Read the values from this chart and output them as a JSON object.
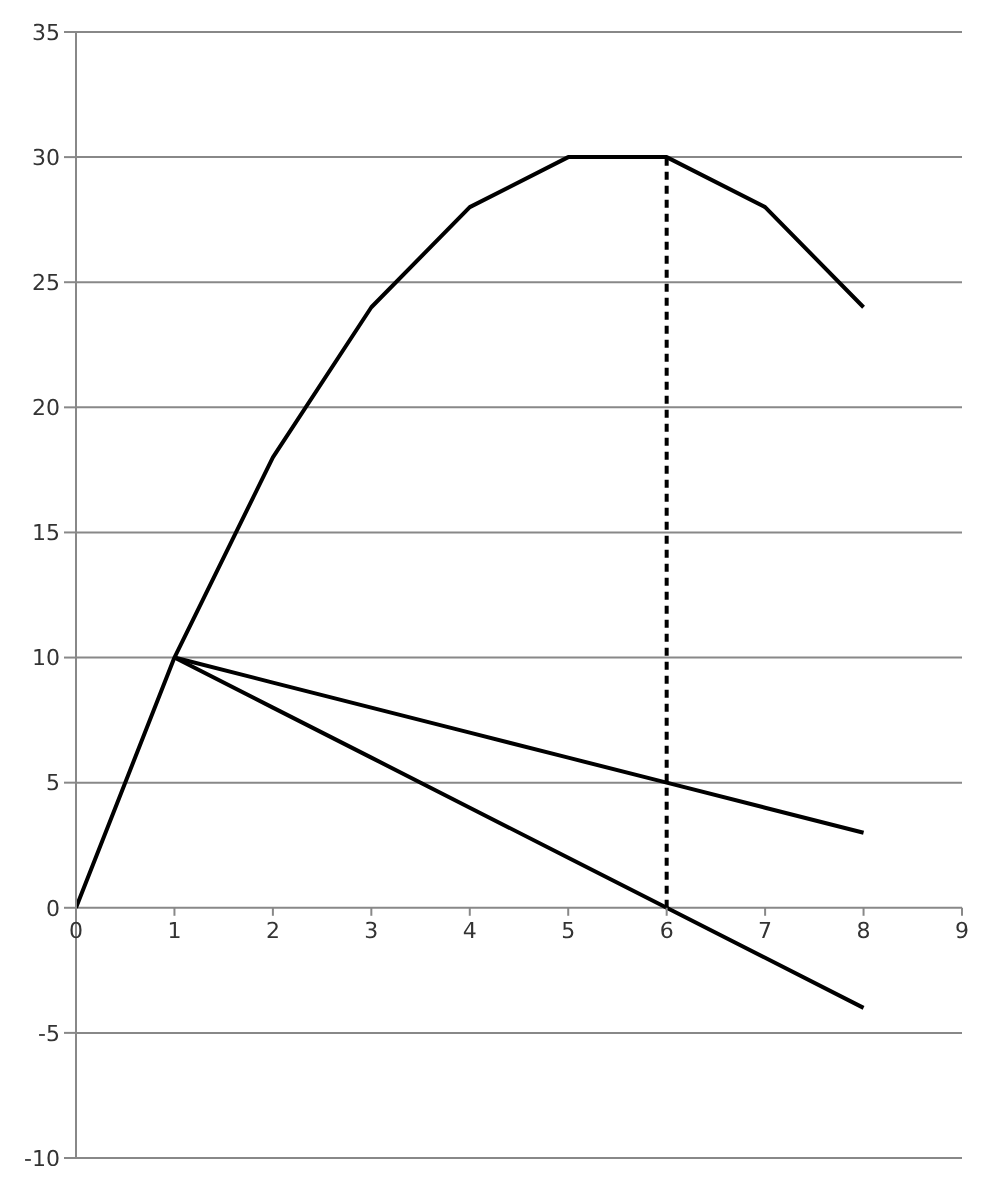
{
  "chart_data": {
    "type": "line",
    "xlim": [
      0,
      9
    ],
    "xticks": [
      0,
      1,
      2,
      3,
      4,
      5,
      6,
      7,
      8,
      9
    ],
    "ylim": [
      -10,
      35
    ],
    "yticks": [
      -10,
      -5,
      0,
      5,
      10,
      15,
      20,
      25,
      30,
      35
    ],
    "grid": "y",
    "legend": false,
    "marker": "none",
    "line_style": "solid",
    "series": [
      {
        "color": "#000000",
        "x": [
          0,
          1,
          2,
          3,
          4,
          5,
          6,
          7,
          8
        ],
        "values": [
          0,
          10,
          18,
          24,
          28,
          30,
          30,
          28,
          24
        ]
      },
      {
        "color": "#000000",
        "x": [
          1,
          2,
          3,
          4,
          5,
          6,
          7,
          8
        ],
        "values": [
          10,
          9,
          8,
          7,
          6,
          5,
          4,
          3
        ]
      },
      {
        "color": "#000000",
        "x": [
          1,
          2,
          3,
          4,
          5,
          6,
          7,
          8
        ],
        "values": [
          10,
          8,
          6,
          4,
          2,
          0,
          -2,
          -4
        ]
      },
      {
        "color": "#000000",
        "x": [
          6,
          6
        ],
        "values": [
          0,
          30
        ],
        "line_style": "dashed"
      }
    ]
  }
}
